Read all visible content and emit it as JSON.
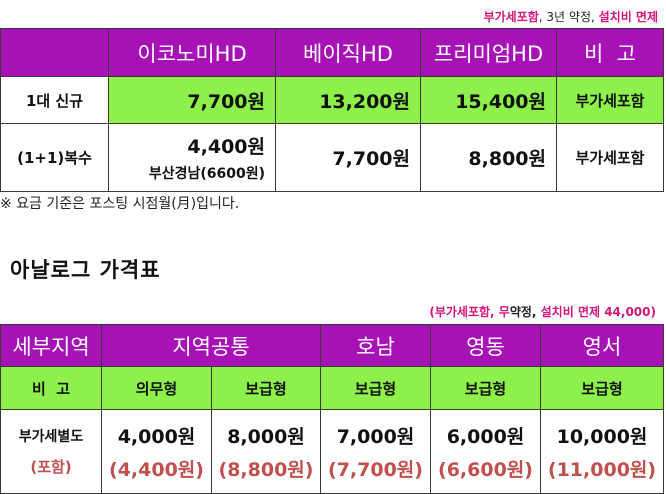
{
  "table1": {
    "note": {
      "part1": "부가세포함",
      "part2": ", 3년 약정, ",
      "part3": "설치비 면제"
    },
    "headers": [
      "",
      "이코노미HD",
      "베이직HD",
      "프리미엄HD",
      "비  고"
    ],
    "rows": [
      {
        "label": "1대 신규",
        "econ": "7,700원",
        "basic": "13,200원",
        "premium": "15,400원",
        "note": "부가세포함"
      },
      {
        "label": "(1+1)복수",
        "econ": "4,400원",
        "econ_sub": "부산경남(6600원)",
        "basic": "7,700원",
        "premium": "8,800원",
        "note": "부가세포함"
      }
    ],
    "footnote": "※ 요금 기준은 포스팅 시점월(月)입니다."
  },
  "table2": {
    "title": "아날로그 가격표",
    "note": {
      "part1": "(부가세포함, ",
      "part2": "무",
      "part3": "약정, ",
      "part4": "설치비 면제 44,000)"
    },
    "headers": [
      "세부지역",
      "지역공통",
      "호남",
      "영동",
      "영서"
    ],
    "subheaders": [
      "비  고",
      "의무형",
      "보급형",
      "보급형",
      "보급형",
      "보급형"
    ],
    "row": {
      "label": "부가세별도",
      "label_sub": "(포함)",
      "values": [
        "4,000원",
        "8,000원",
        "7,000원",
        "6,000원",
        "10,000원"
      ],
      "values_sub": [
        "(4,400원)",
        "(8,800원)",
        "(7,700원)",
        "(6,600원)",
        "(11,000원)"
      ]
    }
  },
  "colors": {
    "header_purple": "#a612b6",
    "cell_green": "#8ef04a",
    "note_pink": "#d4147a",
    "sub_red": "#c0504d"
  }
}
